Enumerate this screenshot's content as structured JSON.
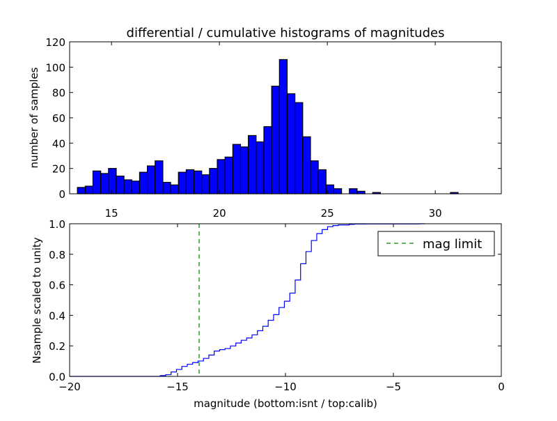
{
  "chart_data": [
    {
      "type": "bar",
      "title": "differential / cumulative histograms of magnitudes",
      "xlabel": "",
      "ylabel": "number of samples",
      "xlim": [
        13.06,
        33.06
      ],
      "ylim": [
        0,
        120
      ],
      "xticks": [
        15,
        20,
        25,
        30
      ],
      "yticks": [
        0,
        20,
        40,
        60,
        80,
        100,
        120
      ],
      "bin_start": 13.42,
      "bin_width": 0.36,
      "counts": [
        5,
        6,
        18,
        16,
        20,
        14,
        11,
        10,
        17,
        22,
        26,
        9,
        7,
        17,
        19,
        18,
        15,
        20,
        27,
        29,
        39,
        37,
        46,
        41,
        53,
        85,
        106,
        79,
        72,
        45,
        26,
        19,
        7,
        4,
        0,
        4,
        2,
        0,
        1,
        0,
        0,
        0,
        0,
        0,
        0,
        0,
        0,
        0,
        1
      ],
      "bar_color": "#0000ff"
    },
    {
      "type": "line",
      "title": "",
      "xlabel": "magnitude (bottom:isnt / top:calib)",
      "ylabel": "Nsample scaled to unity",
      "xlim": [
        -20,
        0
      ],
      "ylim": [
        0,
        1.0
      ],
      "xticks": [
        -20,
        -15,
        -10,
        -5,
        0
      ],
      "yticks": [
        "0.0",
        "0.2",
        "0.4",
        "0.6",
        "0.8",
        "1.0"
      ],
      "step_start": -15.8,
      "step_width": 0.25,
      "line_color": "#0000ff",
      "mag_limit": -14,
      "mag_limit_color": "#008000",
      "legend": {
        "label": "mag limit",
        "placement": "top-right"
      }
    }
  ]
}
